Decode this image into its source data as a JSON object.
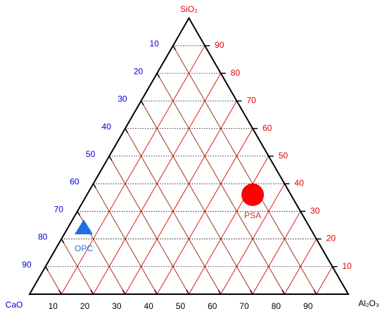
{
  "chart_data": {
    "type": "ternary",
    "axes": {
      "sio2": {
        "name": "SiO₂",
        "color": "#e00000",
        "grid_color": "#000000",
        "ticks": [
          10,
          20,
          30,
          40,
          50,
          60,
          70,
          80,
          90
        ]
      },
      "al2o3": {
        "name": "Al₂O₃",
        "color": "#000000",
        "grid_color": "#e00000",
        "ticks": [
          10,
          20,
          30,
          40,
          50,
          60,
          70,
          80,
          90
        ]
      },
      "cao": {
        "name": "CaO",
        "color": "#0000cc",
        "grid_color": "#8b2500",
        "ticks": [
          10,
          20,
          30,
          40,
          50,
          60,
          70,
          80,
          90
        ]
      }
    },
    "series": [
      {
        "name": "PSA",
        "color": "#ff0000",
        "label_color": "#c0392b",
        "marker": "circle",
        "sio2": 36,
        "al2o3": 52,
        "cao": 12
      },
      {
        "name": "OPC",
        "color": "#1f6fe0",
        "label_color": "#1f6fe0",
        "marker": "triangle",
        "sio2": 24,
        "al2o3": 5,
        "cao": 71
      }
    ]
  }
}
